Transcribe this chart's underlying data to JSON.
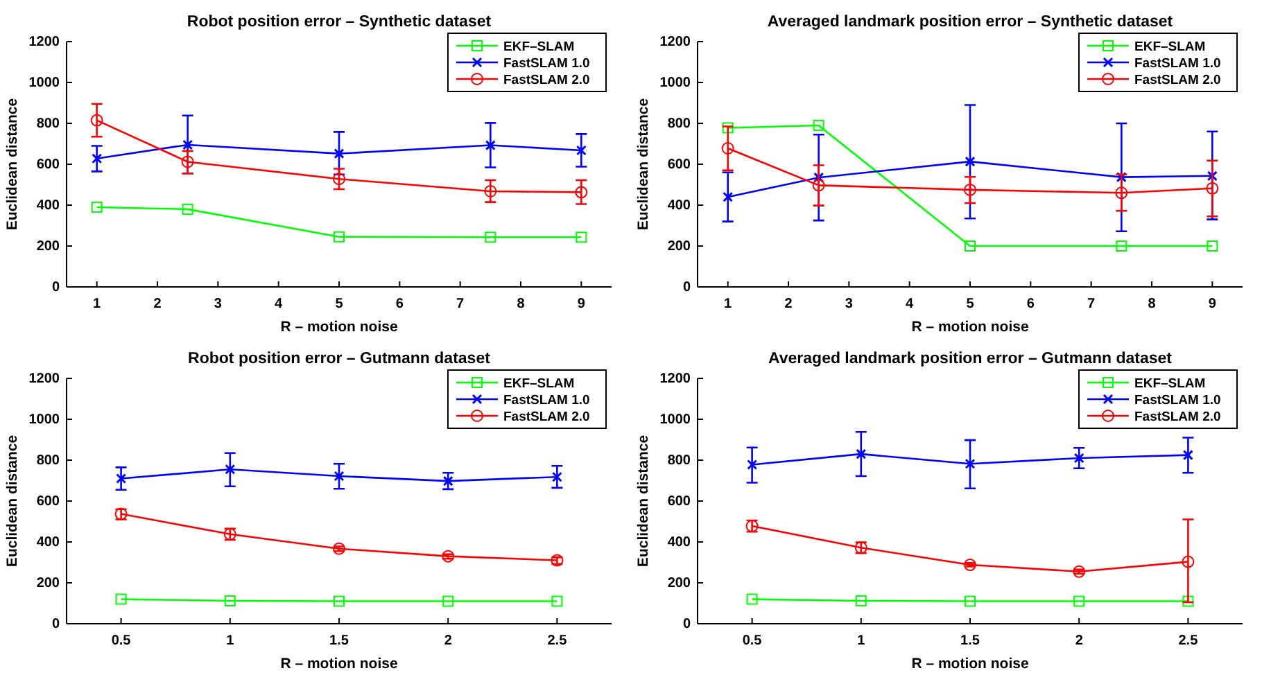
{
  "chart_data": [
    {
      "type": "line",
      "title": "Robot position error – Synthetic dataset",
      "xlabel": "R – motion noise",
      "ylabel": "Euclidean distance",
      "x": [
        1,
        2.5,
        5,
        7.5,
        9
      ],
      "xlim": [
        0.5,
        9.5
      ],
      "xticks": [
        1,
        2,
        3,
        4,
        5,
        6,
        7,
        8,
        9
      ],
      "ylim": [
        0,
        1200
      ],
      "yticks": [
        0,
        200,
        400,
        600,
        800,
        1000,
        1200
      ],
      "legend": "top right",
      "series": [
        {
          "name": "EKF–SLAM",
          "color": "#00ff00",
          "marker": "square",
          "values": [
            390,
            380,
            245,
            243,
            243
          ]
        },
        {
          "name": "FastSLAM 1.0",
          "color": "#0000ff",
          "marker": "cross",
          "values": [
            628,
            695,
            652,
            693,
            668
          ],
          "errors": [
            [
              565,
              690
            ],
            [
              555,
              838
            ],
            [
              550,
              758
            ],
            [
              585,
              802
            ],
            [
              588,
              748
            ]
          ]
        },
        {
          "name": "FastSLAM 2.0",
          "color": "#ff0000",
          "marker": "circle",
          "values": [
            815,
            612,
            528,
            468,
            463
          ],
          "errors": [
            [
              735,
              895
            ],
            [
              555,
              665
            ],
            [
              478,
              578
            ],
            [
              415,
              522
            ],
            [
              405,
              522
            ]
          ]
        }
      ]
    },
    {
      "type": "line",
      "title": "Averaged landmark position error – Synthetic dataset",
      "xlabel": "R – motion noise",
      "ylabel": "Euclidean distance",
      "x": [
        1,
        2.5,
        5,
        7.5,
        9
      ],
      "xlim": [
        0.5,
        9.5
      ],
      "xticks": [
        1,
        2,
        3,
        4,
        5,
        6,
        7,
        8,
        9
      ],
      "ylim": [
        0,
        1200
      ],
      "yticks": [
        0,
        200,
        400,
        600,
        800,
        1000,
        1200
      ],
      "legend": "top right",
      "series": [
        {
          "name": "EKF–SLAM",
          "color": "#00ff00",
          "marker": "square",
          "values": [
            778,
            790,
            200,
            200,
            200
          ]
        },
        {
          "name": "FastSLAM 1.0",
          "color": "#0000ff",
          "marker": "cross",
          "values": [
            440,
            535,
            613,
            537,
            543
          ],
          "errors": [
            [
              320,
              560
            ],
            [
              325,
              745
            ],
            [
              335,
              890
            ],
            [
              272,
              800
            ],
            [
              330,
              760
            ]
          ]
        },
        {
          "name": "FastSLAM 2.0",
          "color": "#ff0000",
          "marker": "circle",
          "values": [
            678,
            497,
            475,
            460,
            482
          ],
          "errors": [
            [
              570,
              785
            ],
            [
              398,
              595
            ],
            [
              410,
              538
            ],
            [
              372,
              550
            ],
            [
              345,
              618
            ]
          ]
        }
      ]
    },
    {
      "type": "line",
      "title": "Robot position error – Gutmann dataset",
      "xlabel": "R – motion noise",
      "ylabel": "Euclidean distance",
      "x": [
        0.5,
        1,
        1.5,
        2,
        2.5
      ],
      "xlim": [
        0.25,
        2.75
      ],
      "xticks": [
        0.5,
        1,
        1.5,
        2,
        2.5
      ],
      "ylim": [
        0,
        1200
      ],
      "yticks": [
        0,
        200,
        400,
        600,
        800,
        1000,
        1200
      ],
      "legend": "top right",
      "series": [
        {
          "name": "EKF–SLAM",
          "color": "#00ff00",
          "marker": "square",
          "values": [
            120,
            112,
            110,
            110,
            110
          ]
        },
        {
          "name": "FastSLAM 1.0",
          "color": "#0000ff",
          "marker": "cross",
          "values": [
            710,
            755,
            722,
            698,
            718
          ],
          "errors": [
            [
              655,
              765
            ],
            [
              672,
              835
            ],
            [
              660,
              782
            ],
            [
              658,
              738
            ],
            [
              665,
              772
            ]
          ]
        },
        {
          "name": "FastSLAM 2.0",
          "color": "#ff0000",
          "marker": "circle",
          "values": [
            537,
            438,
            367,
            330,
            310
          ],
          "errors": [
            [
              510,
              560
            ],
            [
              410,
              465
            ],
            [
              355,
              378
            ],
            [
              318,
              340
            ],
            [
              292,
              325
            ]
          ]
        }
      ]
    },
    {
      "type": "line",
      "title": "Averaged landmark position error – Gutmann dataset",
      "xlabel": "R – motion noise",
      "ylabel": "Euclidean distance",
      "x": [
        0.5,
        1,
        1.5,
        2,
        2.5
      ],
      "xlim": [
        0.25,
        2.75
      ],
      "xticks": [
        0.5,
        1,
        1.5,
        2,
        2.5
      ],
      "ylim": [
        0,
        1200
      ],
      "yticks": [
        0,
        200,
        400,
        600,
        800,
        1000,
        1200
      ],
      "legend": "top right",
      "series": [
        {
          "name": "EKF–SLAM",
          "color": "#00ff00",
          "marker": "square",
          "values": [
            120,
            112,
            110,
            110,
            110
          ]
        },
        {
          "name": "FastSLAM 1.0",
          "color": "#0000ff",
          "marker": "cross",
          "values": [
            778,
            830,
            782,
            810,
            825
          ],
          "errors": [
            [
              690,
              862
            ],
            [
              722,
              938
            ],
            [
              662,
              898
            ],
            [
              760,
              860
            ],
            [
              738,
              910
            ]
          ]
        },
        {
          "name": "FastSLAM 2.0",
          "color": "#ff0000",
          "marker": "circle",
          "values": [
            478,
            372,
            288,
            255,
            303
          ],
          "errors": [
            [
              450,
              505
            ],
            [
              345,
              398
            ],
            [
              280,
              297
            ],
            [
              245,
              265
            ],
            [
              105,
              510
            ]
          ]
        }
      ]
    }
  ]
}
